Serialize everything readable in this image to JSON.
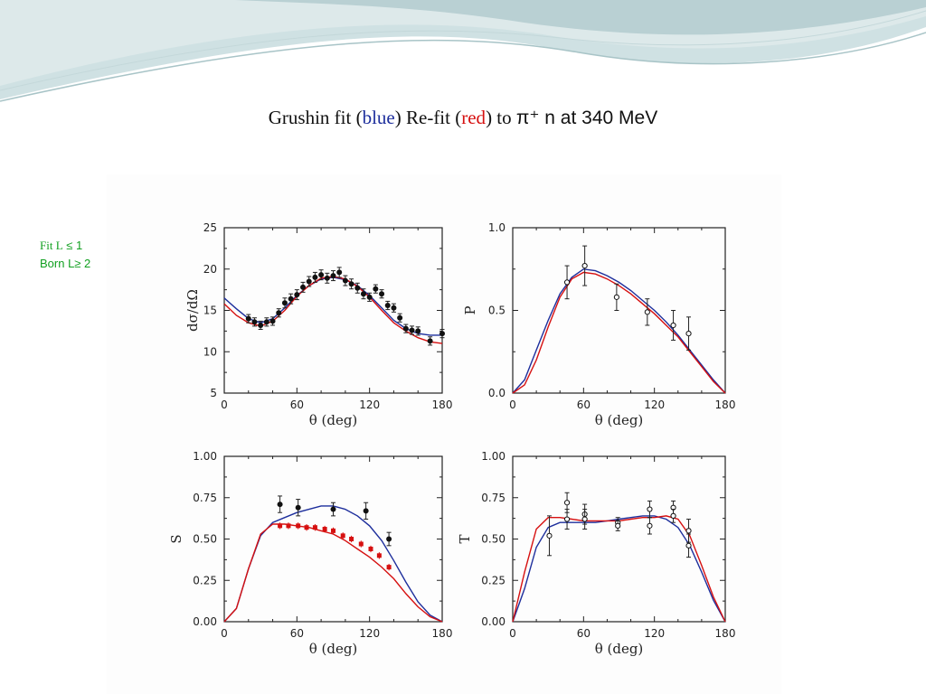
{
  "title": {
    "part1": "Grushin  fit (",
    "blue": "blue",
    "part2": ") Re-fit (",
    "red": "red",
    "part3": ") to ",
    "part4": "π⁺ n at 340 MeV"
  },
  "side_note": {
    "line1_a": "Fit L",
    "line1_b": " ≤ 1",
    "line2": "Born L≥ 2"
  },
  "colors": {
    "blue_fit": "#1d2e9c",
    "red_fit": "#d61010",
    "note_green": "#11a020"
  },
  "chart_data": [
    {
      "type": "line",
      "ylabel": "dσ/dΩ",
      "xlabel": "θ (deg)",
      "xlim": [
        0,
        180
      ],
      "ylim": [
        5,
        25
      ],
      "xticks": [
        0,
        60,
        120,
        180
      ],
      "yticks": [
        5,
        10,
        15,
        20,
        25
      ],
      "ytick_labels": [
        "5",
        "10",
        "15",
        "20",
        "25"
      ],
      "series": [
        {
          "color": "blue",
          "x": [
            0,
            10,
            20,
            30,
            40,
            50,
            60,
            70,
            80,
            90,
            100,
            110,
            120,
            130,
            140,
            150,
            160,
            170,
            180
          ],
          "y": [
            16.5,
            15.2,
            14.0,
            13.5,
            14.0,
            15.3,
            16.8,
            18.0,
            18.8,
            19.0,
            18.7,
            18.0,
            16.8,
            15.3,
            13.8,
            12.8,
            12.2,
            12.0,
            12.0
          ]
        },
        {
          "color": "red",
          "x": [
            0,
            10,
            20,
            30,
            40,
            50,
            60,
            70,
            80,
            90,
            100,
            110,
            120,
            130,
            140,
            150,
            160,
            170,
            180
          ],
          "y": [
            15.8,
            14.4,
            13.5,
            13.1,
            13.7,
            15.0,
            16.7,
            18.0,
            18.9,
            19.1,
            18.8,
            17.9,
            16.6,
            15.0,
            13.5,
            12.5,
            11.7,
            11.2,
            11.0
          ]
        }
      ],
      "points": {
        "style": "filled",
        "x": [
          20,
          25,
          30,
          35,
          40,
          45,
          50,
          55,
          60,
          65,
          70,
          75,
          80,
          85,
          90,
          95,
          100,
          105,
          110,
          115,
          120,
          125,
          130,
          135,
          140,
          145,
          150,
          155,
          160,
          170,
          180
        ],
        "y": [
          14.0,
          13.6,
          13.2,
          13.6,
          13.7,
          14.7,
          15.9,
          16.4,
          16.9,
          17.8,
          18.5,
          19.0,
          19.3,
          18.9,
          19.2,
          19.6,
          18.6,
          18.2,
          17.7,
          17.0,
          16.6,
          17.6,
          17.0,
          15.6,
          15.3,
          14.1,
          12.8,
          12.6,
          12.5,
          11.3,
          12.2
        ],
        "err": [
          0.5,
          0.5,
          0.5,
          0.5,
          0.5,
          0.5,
          0.6,
          0.6,
          0.6,
          0.6,
          0.6,
          0.6,
          0.6,
          0.6,
          0.6,
          0.6,
          0.6,
          0.6,
          0.6,
          0.6,
          0.5,
          0.5,
          0.5,
          0.5,
          0.5,
          0.5,
          0.5,
          0.5,
          0.5,
          0.5,
          0.5
        ]
      }
    },
    {
      "type": "line",
      "ylabel": "P",
      "xlabel": "θ (deg)",
      "xlim": [
        0,
        180
      ],
      "ylim": [
        0,
        1
      ],
      "xticks": [
        0,
        60,
        120,
        180
      ],
      "yticks": [
        0,
        0.5,
        1.0
      ],
      "ytick_labels": [
        "0.0",
        "0.5",
        "1.0"
      ],
      "series": [
        {
          "color": "blue",
          "x": [
            0,
            10,
            20,
            30,
            40,
            50,
            60,
            70,
            80,
            90,
            100,
            110,
            120,
            130,
            140,
            150,
            160,
            170,
            180
          ],
          "y": [
            0.0,
            0.08,
            0.26,
            0.44,
            0.6,
            0.7,
            0.75,
            0.74,
            0.71,
            0.67,
            0.62,
            0.56,
            0.5,
            0.43,
            0.35,
            0.26,
            0.17,
            0.08,
            0.0
          ]
        },
        {
          "color": "red",
          "x": [
            0,
            10,
            20,
            30,
            40,
            50,
            60,
            70,
            80,
            90,
            100,
            110,
            120,
            130,
            140,
            150,
            160,
            170,
            180
          ],
          "y": [
            0.0,
            0.05,
            0.2,
            0.4,
            0.58,
            0.69,
            0.73,
            0.72,
            0.69,
            0.65,
            0.6,
            0.54,
            0.48,
            0.41,
            0.34,
            0.25,
            0.16,
            0.07,
            0.0
          ]
        }
      ],
      "points": {
        "style": "open",
        "x": [
          46,
          61,
          88,
          114,
          136,
          149
        ],
        "y": [
          0.67,
          0.77,
          0.58,
          0.49,
          0.41,
          0.36
        ],
        "err": [
          0.1,
          0.12,
          0.08,
          0.08,
          0.09,
          0.1
        ]
      }
    },
    {
      "type": "line",
      "ylabel": "S",
      "xlabel": "θ (deg)",
      "xlim": [
        0,
        180
      ],
      "ylim": [
        0,
        1
      ],
      "xticks": [
        0,
        60,
        120,
        180
      ],
      "yticks": [
        0,
        0.25,
        0.5,
        0.75,
        1.0
      ],
      "ytick_labels": [
        "0.00",
        "0.25",
        "0.50",
        "0.75",
        "1.00"
      ],
      "series": [
        {
          "color": "blue",
          "x": [
            0,
            10,
            20,
            30,
            40,
            50,
            60,
            70,
            80,
            90,
            100,
            110,
            120,
            130,
            140,
            150,
            160,
            170,
            180
          ],
          "y": [
            0.0,
            0.08,
            0.32,
            0.52,
            0.6,
            0.63,
            0.66,
            0.68,
            0.7,
            0.7,
            0.68,
            0.64,
            0.58,
            0.49,
            0.37,
            0.24,
            0.12,
            0.04,
            0.0
          ]
        },
        {
          "color": "red",
          "x": [
            0,
            10,
            20,
            30,
            40,
            50,
            60,
            70,
            80,
            90,
            100,
            110,
            120,
            130,
            140,
            150,
            160,
            170,
            180
          ],
          "y": [
            0.0,
            0.08,
            0.32,
            0.53,
            0.59,
            0.59,
            0.58,
            0.57,
            0.55,
            0.53,
            0.49,
            0.44,
            0.39,
            0.33,
            0.26,
            0.17,
            0.09,
            0.03,
            0.0
          ]
        }
      ],
      "points": {
        "style": "filled",
        "x": [
          46,
          61,
          90,
          117,
          136
        ],
        "y": [
          0.71,
          0.69,
          0.68,
          0.67,
          0.5
        ],
        "err": [
          0.05,
          0.05,
          0.04,
          0.05,
          0.04
        ]
      },
      "red_points": {
        "x": [
          46,
          53,
          61,
          68,
          75,
          83,
          90,
          98,
          105,
          113,
          121,
          128,
          136
        ],
        "y": [
          0.58,
          0.58,
          0.58,
          0.57,
          0.57,
          0.56,
          0.55,
          0.52,
          0.5,
          0.47,
          0.44,
          0.4,
          0.33
        ],
        "err": [
          0.02,
          0.02,
          0.02,
          0.02,
          0.02,
          0.02,
          0.02,
          0.02,
          0.02,
          0.02,
          0.02,
          0.02,
          0.02
        ]
      }
    },
    {
      "type": "line",
      "ylabel": "T",
      "xlabel": "θ (deg)",
      "xlim": [
        0,
        180
      ],
      "ylim": [
        0,
        1
      ],
      "xticks": [
        0,
        60,
        120,
        180
      ],
      "yticks": [
        0,
        0.25,
        0.5,
        0.75,
        1.0
      ],
      "ytick_labels": [
        "0.00",
        "0.25",
        "0.50",
        "0.75",
        "1.00"
      ],
      "series": [
        {
          "color": "blue",
          "x": [
            0,
            10,
            20,
            30,
            40,
            50,
            60,
            70,
            80,
            90,
            100,
            110,
            120,
            130,
            140,
            150,
            160,
            170,
            180
          ],
          "y": [
            0.0,
            0.2,
            0.45,
            0.57,
            0.6,
            0.6,
            0.6,
            0.6,
            0.61,
            0.62,
            0.63,
            0.64,
            0.64,
            0.62,
            0.57,
            0.46,
            0.3,
            0.13,
            0.0
          ]
        },
        {
          "color": "red",
          "x": [
            0,
            10,
            20,
            30,
            40,
            50,
            60,
            70,
            80,
            90,
            100,
            110,
            120,
            130,
            140,
            150,
            160,
            170,
            180
          ],
          "y": [
            0.0,
            0.3,
            0.56,
            0.63,
            0.63,
            0.62,
            0.61,
            0.61,
            0.61,
            0.61,
            0.62,
            0.63,
            0.63,
            0.64,
            0.62,
            0.52,
            0.34,
            0.15,
            0.0
          ]
        }
      ],
      "points": {
        "style": "open",
        "x": [
          31,
          46,
          46,
          61,
          61,
          89,
          89,
          116,
          116,
          136,
          136,
          149,
          149
        ],
        "y": [
          0.52,
          0.72,
          0.62,
          0.65,
          0.62,
          0.6,
          0.58,
          0.68,
          0.58,
          0.69,
          0.64,
          0.55,
          0.46
        ],
        "err": [
          0.12,
          0.06,
          0.06,
          0.06,
          0.06,
          0.03,
          0.03,
          0.05,
          0.05,
          0.04,
          0.04,
          0.07,
          0.07
        ]
      }
    }
  ]
}
